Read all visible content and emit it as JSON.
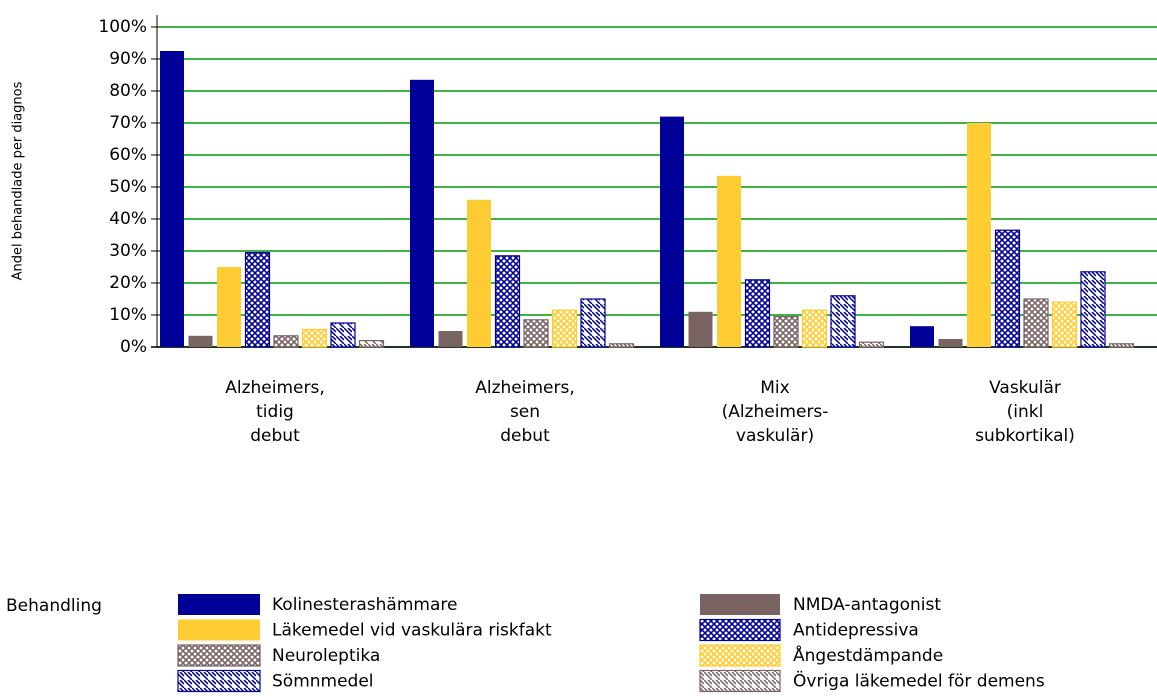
{
  "chart_data": {
    "type": "bar",
    "y_label": "Andel behandlade per diagnos",
    "categories": [
      [
        "Alzheimers,",
        "tidig",
        "debut"
      ],
      [
        "Alzheimers,",
        "sen",
        "debut"
      ],
      [
        "Mix",
        "(Alzheimers-",
        "vaskulär)"
      ],
      [
        "Vaskulär",
        "(inkl",
        "subkortikal)"
      ]
    ],
    "ylim": [
      0,
      100
    ],
    "yticks": [
      {
        "value": 0,
        "label": "0%"
      },
      {
        "value": 10,
        "label": "10%"
      },
      {
        "value": 20,
        "label": "20%"
      },
      {
        "value": 30,
        "label": "30%"
      },
      {
        "value": 40,
        "label": "40%"
      },
      {
        "value": 50,
        "label": "50%"
      },
      {
        "value": 60,
        "label": "60%"
      },
      {
        "value": 70,
        "label": "70%"
      },
      {
        "value": 80,
        "label": "80%"
      },
      {
        "value": 90,
        "label": "90%"
      },
      {
        "value": 100,
        "label": "100%"
      }
    ],
    "grid": true,
    "grid_color": "#009900",
    "legend_title": "Behandling",
    "legend_position": "bottom",
    "series": [
      {
        "name": "Kolinesterashämmare",
        "color": "#000099",
        "pattern": "solid",
        "values": [
          92.5,
          83.5,
          72,
          6.5
        ]
      },
      {
        "name": "NMDA-antagonist",
        "color": "#7a6363",
        "pattern": "solid",
        "values": [
          3.5,
          5,
          11,
          2.5
        ]
      },
      {
        "name": "Läkemedel vid vaskulära riskfakt",
        "color": "#ffcc33",
        "pattern": "solid",
        "values": [
          25,
          46,
          53.5,
          70
        ]
      },
      {
        "name": "Antidepressiva",
        "color": "#000099",
        "pattern": "crosshatch",
        "values": [
          29.5,
          28.5,
          21,
          36.5
        ]
      },
      {
        "name": "Neuroleptika",
        "color": "#7a6363",
        "pattern": "crosshatch",
        "values": [
          3.5,
          8.5,
          9.5,
          15
        ]
      },
      {
        "name": "Ångestdämpande",
        "color": "#ffcc33",
        "pattern": "crosshatch",
        "values": [
          5.5,
          11.5,
          11.5,
          14
        ]
      },
      {
        "name": "Sömnmedel",
        "color": "#000099",
        "pattern": "diagonal",
        "values": [
          7.5,
          15,
          16,
          23.5
        ]
      },
      {
        "name": "Övriga läkemedel för demens",
        "color": "#7a6363",
        "pattern": "diagonal",
        "values": [
          2,
          1,
          1.5,
          1
        ]
      }
    ]
  }
}
